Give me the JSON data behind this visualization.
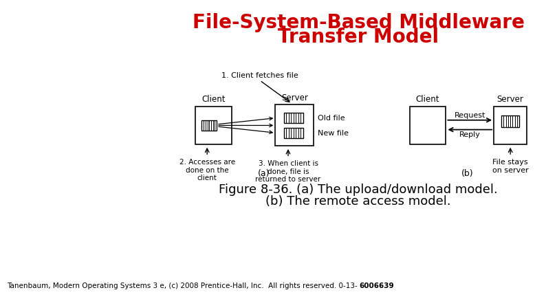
{
  "title_line1": "File-System-Based Middleware",
  "title_line2": "Transfer Model",
  "title_color": "#cc0000",
  "title_fontsize": 20,
  "caption_line1": "Figure 8-36. (a) The upload/download model.",
  "caption_line2": "(b) The remote access model.",
  "caption_fontsize": 13,
  "footer_normal": "Tanenbaum, Modern Operating Systems 3 e, (c) 2008 Prentice-Hall, Inc.  All rights reserved. 0-13-",
  "footer_bold": "6006639",
  "footer_fontsize": 7.5,
  "bg_color": "#ffffff",
  "label_a": "(a)",
  "label_b": "(b)",
  "text_client_fetches": "1. Client fetches file",
  "text_accesses": "2. Accesses are\ndone on the\nclient",
  "text_when_done": "3. When client is\ndone, file is\nreturned to server",
  "text_old_file": "Old file",
  "text_new_file": "New file",
  "text_request": "Request",
  "text_reply": "Reply",
  "text_file_stays": "File stays\non server",
  "text_client_a": "Client",
  "text_server_a": "Server",
  "text_client_b": "Client",
  "text_server_b": "Server"
}
